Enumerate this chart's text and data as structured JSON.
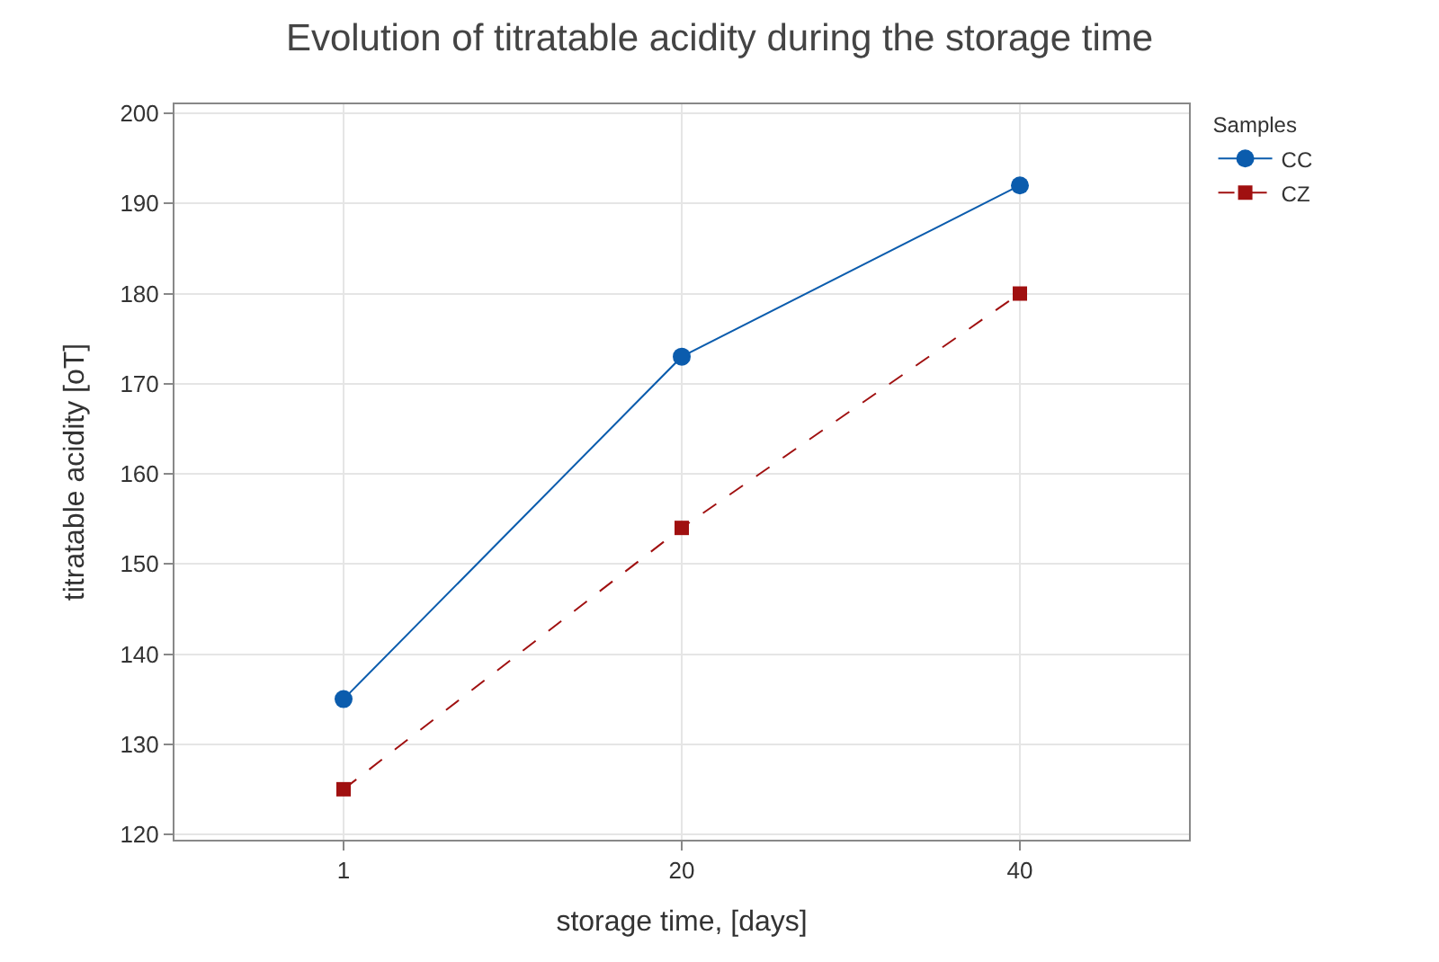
{
  "chart_data": {
    "type": "line",
    "title": "Evolution of titratable acidity during the storage time",
    "xlabel": "storage time, [days]",
    "ylabel": "titratable acidity [oT]",
    "legend_title": "Samples",
    "categories": [
      "1",
      "20",
      "40"
    ],
    "series": [
      {
        "name": "CC",
        "color": "#0b5cad",
        "values": [
          135,
          173,
          192
        ],
        "marker": "circle",
        "line_style": "solid"
      },
      {
        "name": "CZ",
        "color": "#a01010",
        "values": [
          125,
          154,
          180
        ],
        "marker": "square",
        "line_style": "dashed"
      }
    ],
    "ylim": [
      119.4,
      201
    ],
    "yticks": [
      120,
      130,
      140,
      150,
      160,
      170,
      180,
      190,
      200
    ],
    "grid": true,
    "legend": "top right"
  }
}
